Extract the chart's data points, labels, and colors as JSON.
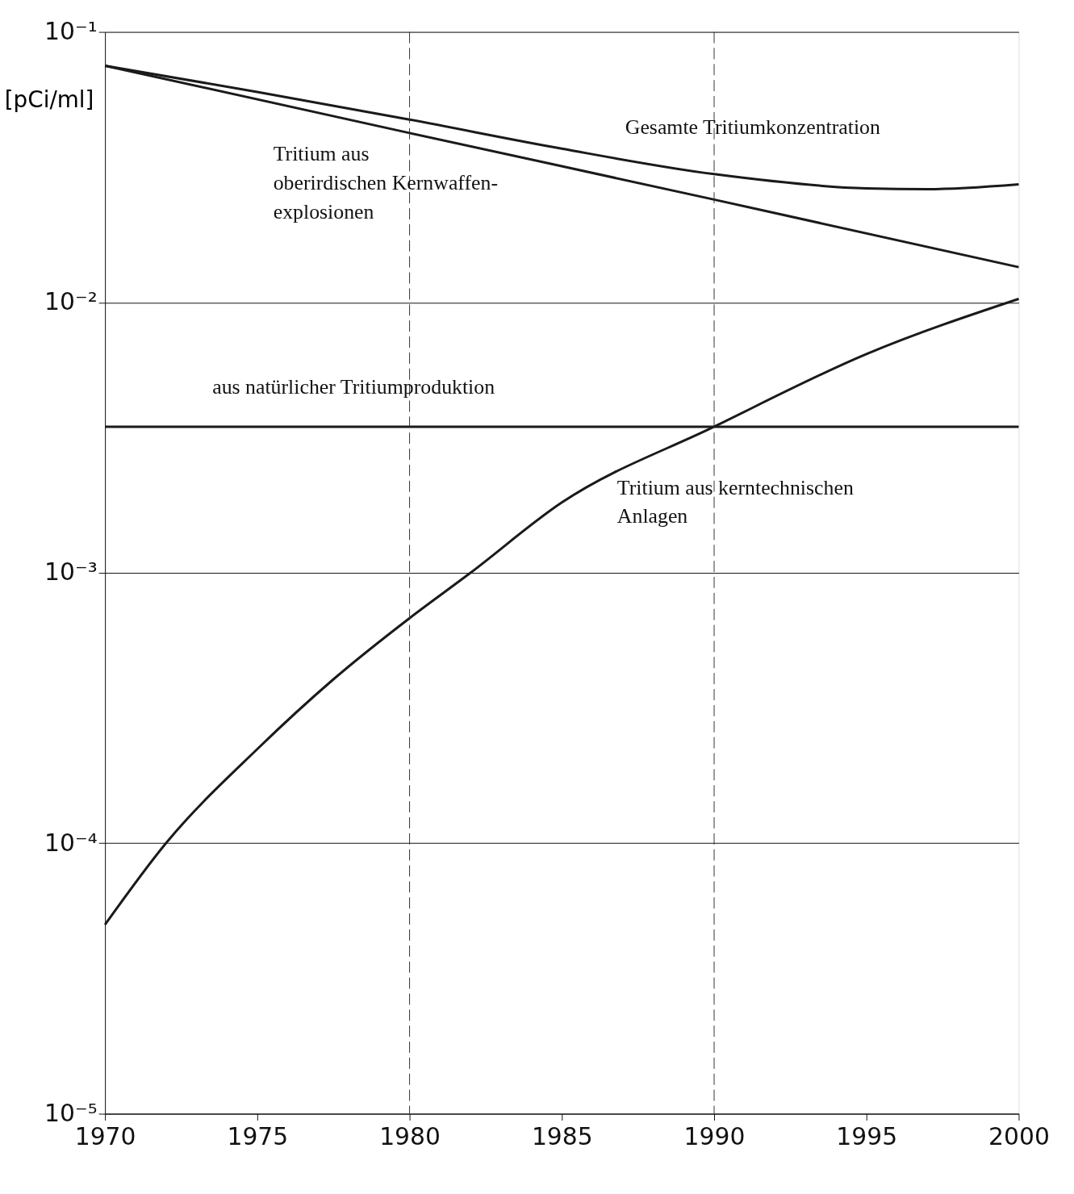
{
  "chart_data": {
    "type": "line",
    "ylabel": "[pCi/ml]",
    "series": [
      {
        "x": [
          1970,
          1975,
          1980,
          1985,
          1990,
          1995,
          1997,
          2000
        ],
        "values": [
          0.075,
          0.06,
          0.0474,
          0.037,
          0.0298,
          0.0264,
          0.0262,
          0.0273
        ],
        "color": "#1a1a1a"
      },
      {
        "x": [
          1970,
          1980,
          1990,
          2000
        ],
        "values": [
          0.075,
          0.0423,
          0.024,
          0.0135
        ],
        "color": "#1a1a1a"
      },
      {
        "x": [
          1970,
          2000
        ],
        "values": [
          0.00347,
          0.00347
        ],
        "color": "#1a1a1a"
      },
      {
        "x": [
          1970,
          1972,
          1975,
          1977.5,
          1980,
          1982,
          1985,
          1990,
          1995,
          2000
        ],
        "values": [
          5e-05,
          0.0001,
          0.000223,
          0.000404,
          0.00068,
          0.001,
          0.00182,
          0.00347,
          0.00644,
          0.0103
        ],
        "color": "#1a1a1a"
      }
    ],
    "xlim": [
      1970,
      2000
    ],
    "xticks": [
      1970,
      1975,
      1980,
      1985,
      1990,
      1995,
      2000
    ],
    "ylim": [
      1e-05,
      0.1
    ],
    "log": true,
    "yticks": [
      {
        "value": 0.1,
        "label": "10⁻¹"
      },
      {
        "value": 0.01,
        "label": "10⁻²"
      },
      {
        "value": 0.001,
        "label": "10⁻³"
      },
      {
        "value": 0.0001,
        "label": "10⁻⁴"
      },
      {
        "value": 1e-05,
        "label": "10⁻⁵"
      }
    ],
    "grid": "y",
    "ref_lines": [
      {
        "axis": "x",
        "value": 1980,
        "label": null,
        "line_style": "dashed"
      },
      {
        "axis": "x",
        "value": 1990,
        "label": null,
        "line_style": "dashed"
      }
    ],
    "annotations": [
      "Gesamte Tritiumkonzentration",
      "Tritium aus\noberirdischen Kernwaffen-\nexplosionen",
      "aus natürlicher Tritiumproduktion",
      "Tritium aus kerntechnischen\nAnlagen"
    ]
  }
}
